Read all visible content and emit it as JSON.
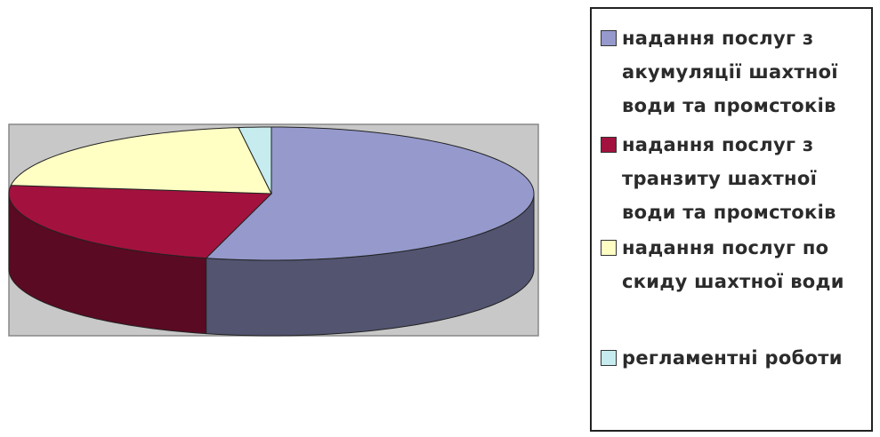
{
  "chart_data": {
    "type": "pie3d",
    "categories": [
      "надання послуг з акумуляції шахтної води та промстоків",
      "надання послуг з транзиту шахтної води та промстоків",
      "надання послуг по скиду шахтної води",
      "регламентні роботи"
    ],
    "values": [
      54,
      23,
      21,
      2
    ],
    "colors": [
      "#9599cc",
      "#a3123e",
      "#ffffc4",
      "#c6ecef"
    ],
    "legend": "right"
  }
}
